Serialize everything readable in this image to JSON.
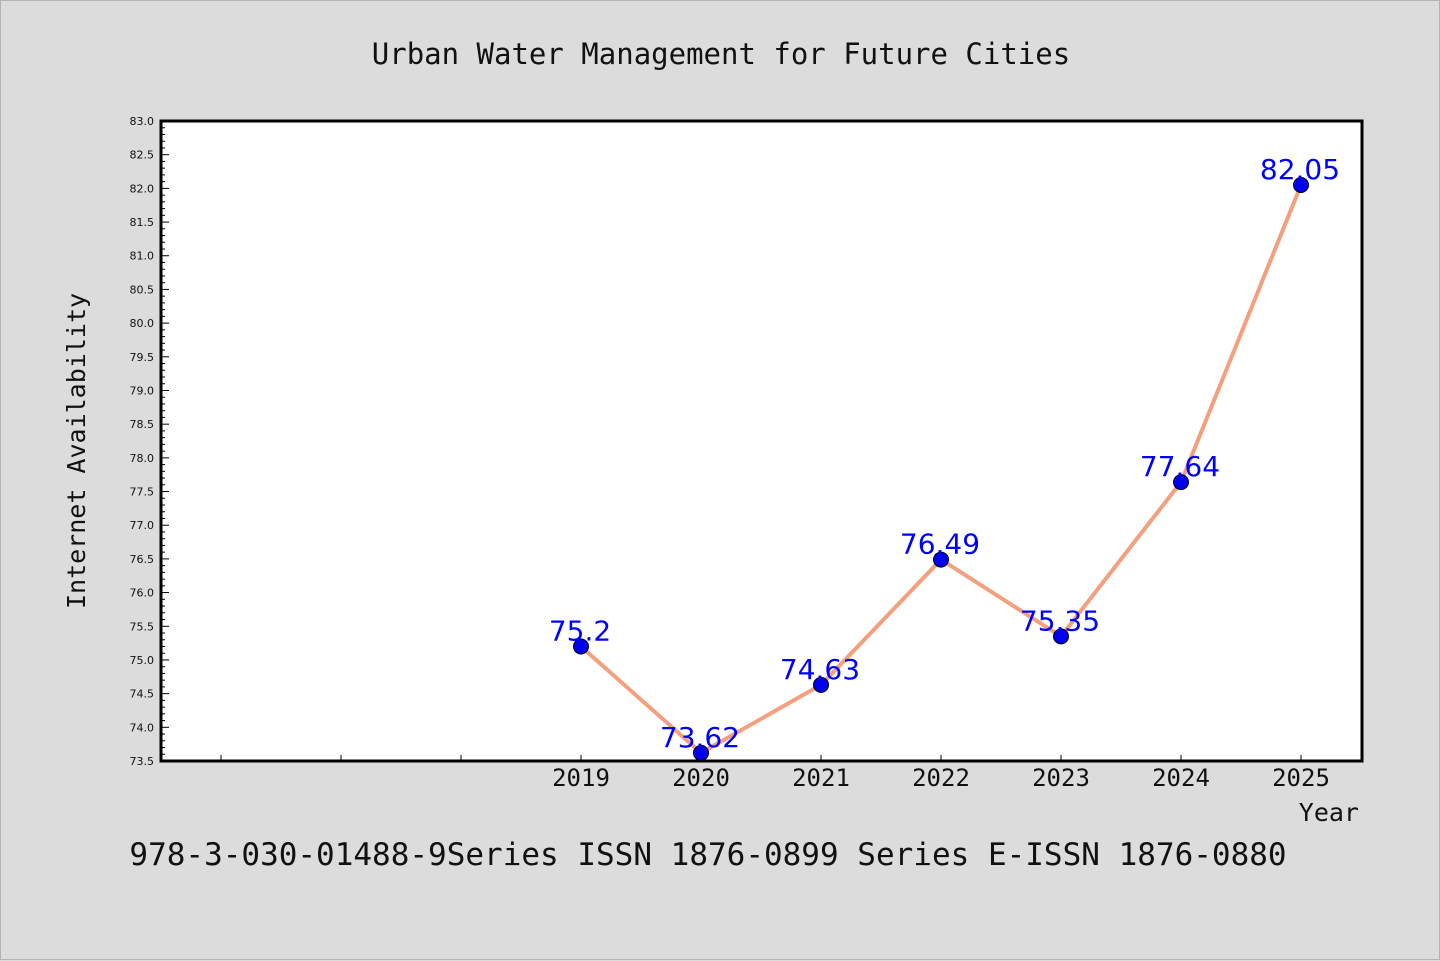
{
  "chart_data": {
    "type": "line",
    "title": "Urban Water Management for Future Cities",
    "xlabel": "Year",
    "ylabel": "Internet Availability",
    "footer": "978-3-030-01488-9Series ISSN 1876-0899 Series E-ISSN 1876-0880",
    "x": [
      "2019",
      "2020",
      "2021",
      "2022",
      "2023",
      "2024",
      "2025"
    ],
    "series": [
      {
        "values": [
          75.2,
          73.62,
          74.63,
          76.49,
          75.35,
          77.64,
          82.05
        ]
      }
    ],
    "data_labels": [
      "75.2",
      "73.62",
      "74.63",
      "76.49",
      "75.35",
      "77.64",
      "82.05"
    ],
    "ylim": [
      73.5,
      83.0
    ],
    "y_ticks": [
      "73.5",
      "74.0",
      "74.5",
      "75.0",
      "75.5",
      "76.0",
      "76.5",
      "77.0",
      "77.5",
      "78.0",
      "78.5",
      "79.0",
      "79.5",
      "80.0",
      "80.5",
      "81.0",
      "81.5",
      "82.0",
      "82.5",
      "83.0"
    ],
    "grid": false,
    "line_color": "#f4a07e",
    "marker_color": "#0000ee",
    "label_color": "#0000ff"
  }
}
